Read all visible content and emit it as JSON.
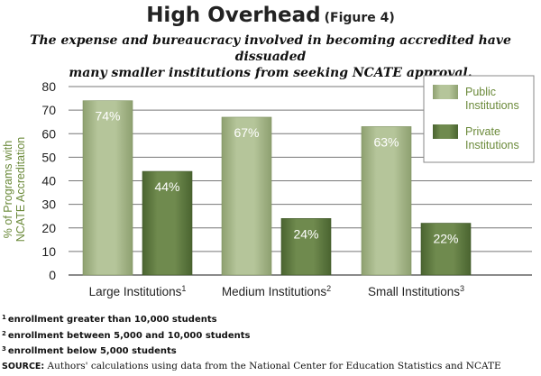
{
  "title": "High Overhead",
  "figure_label": "(Figure 4)",
  "subtitle_line1": "The expense and bureaucracy involved in becoming accredited have dissuaded",
  "subtitle_line2": "many smaller institutions from seeking NCATE approval.",
  "footnotes": [
    {
      "num": "1",
      "text": "enrollment greater than 10,000 students"
    },
    {
      "num": "2",
      "text": "enrollment between 5,000 and 10,000 students"
    },
    {
      "num": "3",
      "text": "enrollment below 5,000 students"
    }
  ],
  "source_label": "SOURCE:",
  "source_text": " Authors' calculations using data from the National Center for Education Statistics and NCATE",
  "colors": {
    "public_light": "#b5c59a",
    "public_dark": "#8ea070",
    "private_light": "#6f8a4e",
    "private_dark": "#4a6430",
    "axis_label": "#6b8a3a"
  },
  "chart_data": {
    "type": "bar",
    "categories": [
      "Large Institutions",
      "Medium Institutions",
      "Small Institutions"
    ],
    "category_sup": [
      "1",
      "2",
      "3"
    ],
    "series": [
      {
        "name": "Public Institutions",
        "name_lines": [
          "Public",
          "Institutions"
        ],
        "values": [
          74,
          67,
          63
        ],
        "labels": [
          "74%",
          "67%",
          "63%"
        ]
      },
      {
        "name": "Private Institutions",
        "name_lines": [
          "Private",
          "Institutions"
        ],
        "values": [
          44,
          24,
          22
        ],
        "labels": [
          "44%",
          "24%",
          "22%"
        ]
      }
    ],
    "ylabel_lines": [
      "% of Programs with",
      "NCATE Accreditation"
    ],
    "ylim": [
      0,
      80
    ],
    "yticks": [
      0,
      10,
      20,
      30,
      40,
      50,
      60,
      70,
      80
    ],
    "grid": true,
    "legend_position": "top-right"
  }
}
